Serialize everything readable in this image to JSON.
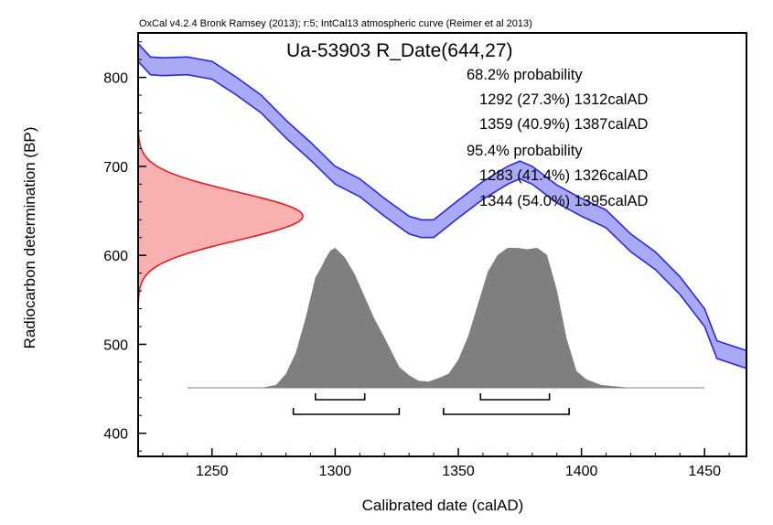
{
  "colors": {
    "background": "#ffffff",
    "curve_band_fill": "#a9a9f5",
    "curve_band_stroke": "#2727e6",
    "radiocarbon_fill": "#f8b0b0",
    "radiocarbon_stroke": "#e02020",
    "posterior_fill": "#7f7f7f",
    "axis": "#000000"
  },
  "chart_data": {
    "type": "area",
    "credit": "OxCal v4.2.4 Bronk Ramsey (2013); r:5; IntCal13 atmospheric curve (Reimer et al 2013)",
    "title": "Ua-53903 R_Date(644,27)",
    "xlabel": "Calibrated date (calAD)",
    "ylabel": "Radiocarbon determination (BP)",
    "xlim": [
      1220,
      1467
    ],
    "ylim": [
      374,
      850
    ],
    "xticks": [
      1250,
      1300,
      1350,
      1400,
      1450
    ],
    "yticks": [
      400,
      500,
      600,
      700,
      800
    ],
    "grid": false,
    "ranges_text": {
      "p68_label": "68.2% probability",
      "p68_lines": [
        "1292 (27.3%) 1312calAD",
        "1359 (40.9%) 1387calAD"
      ],
      "p95_label": "95.4% probability",
      "p95_lines": [
        "1283 (41.4%) 1326calAD",
        "1344 (54.0%) 1395calAD"
      ]
    },
    "ranges_68": [
      [
        1292,
        1312
      ],
      [
        1359,
        1387
      ]
    ],
    "ranges_95": [
      [
        1283,
        1326
      ],
      [
        1344,
        1395
      ]
    ],
    "radiocarbon_date": {
      "mean": 644,
      "sd": 27
    },
    "calibration_curve": {
      "name": "IntCal13",
      "x": [
        1220,
        1225,
        1230,
        1240,
        1250,
        1260,
        1270,
        1280,
        1290,
        1300,
        1310,
        1320,
        1330,
        1335,
        1340,
        1350,
        1360,
        1370,
        1375,
        1380,
        1390,
        1400,
        1410,
        1420,
        1430,
        1440,
        1450,
        1455,
        1467
      ],
      "upper": [
        838,
        823,
        822,
        823,
        818,
        800,
        780,
        752,
        727,
        700,
        686,
        664,
        644,
        640,
        640,
        662,
        683,
        700,
        706,
        700,
        679,
        664,
        651,
        624,
        604,
        576,
        540,
        504,
        493
      ],
      "lower": [
        818,
        803,
        802,
        803,
        798,
        780,
        760,
        732,
        707,
        680,
        666,
        644,
        624,
        620,
        620,
        642,
        663,
        680,
        686,
        680,
        659,
        644,
        631,
        604,
        584,
        556,
        520,
        484,
        473
      ]
    },
    "calibrated_distribution": {
      "x": [
        1240,
        1270,
        1276,
        1280,
        1284,
        1288,
        1292,
        1294,
        1296,
        1298,
        1300,
        1304,
        1308,
        1312,
        1316,
        1320,
        1326,
        1330,
        1334,
        1338,
        1342,
        1346,
        1350,
        1354,
        1358,
        1362,
        1366,
        1370,
        1374,
        1378,
        1382,
        1386,
        1390,
        1394,
        1398,
        1402,
        1408,
        1420,
        1450
      ],
      "y": [
        0,
        0,
        0.02,
        0.1,
        0.25,
        0.5,
        0.79,
        0.85,
        0.92,
        0.98,
        1.0,
        0.93,
        0.81,
        0.65,
        0.49,
        0.36,
        0.15,
        0.09,
        0.05,
        0.045,
        0.07,
        0.1,
        0.2,
        0.37,
        0.6,
        0.83,
        0.95,
        1.0,
        1.0,
        0.99,
        1.0,
        0.95,
        0.7,
        0.35,
        0.12,
        0.06,
        0.02,
        0,
        0
      ]
    }
  }
}
